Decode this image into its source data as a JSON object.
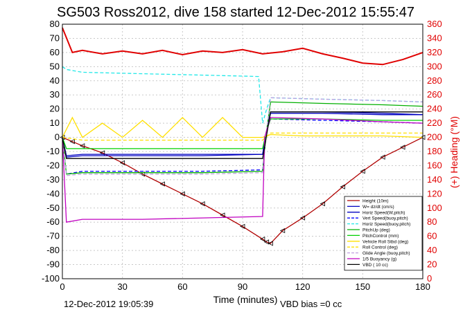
{
  "title": "SG503 Ross2012, dive 158 started 12-Dec-2012 15:55:47",
  "footer_left": "12-Dec-2012 19:05:39",
  "footer_right": "VBD bias =0 cc",
  "colors": {
    "heading": "#e00000",
    "height": "#b00000",
    "w": "#0000c0",
    "horz_speed": "#0000c0",
    "vert_speed": "#0000ff",
    "horz_speed_buoy": "#20e8e8",
    "pitch_up": "#00b000",
    "pitch_control": "#00d000",
    "vehicle_roll": "#ffe000",
    "roll_control": "#ffe000",
    "glide_angle": "#c0a0e0",
    "buoyancy": "#c000c0",
    "vbd": "#000000"
  },
  "chart_data": {
    "type": "line",
    "title": "SG503 Ross2012, dive 158 started 12-Dec-2012 15:55:47",
    "xlabel": "Time (minutes)",
    "ylabel": "",
    "y2label": "(+) Heading (°M)",
    "xlim": [
      0,
      180
    ],
    "ylim": [
      -100,
      80
    ],
    "y2lim": [
      0,
      360
    ],
    "x_ticks": [
      "0",
      "30",
      "60",
      "90",
      "120",
      "150",
      "180"
    ],
    "y_ticks": [
      "80",
      "70",
      "60",
      "50",
      "40",
      "30",
      "20",
      "10",
      "0",
      "-10",
      "-20",
      "-30",
      "-40",
      "-50",
      "-60",
      "-70",
      "-80",
      "-90",
      "-100"
    ],
    "y2_ticks": [
      "360",
      "340",
      "320",
      "300",
      "280",
      "260",
      "240",
      "220",
      "200",
      "180",
      "160",
      "140",
      "120",
      "100",
      "80",
      "60",
      "40",
      "20",
      "0"
    ],
    "grid": true,
    "legend_position": "bottom-right",
    "series": [
      {
        "name": "Height (10m)",
        "key": "height",
        "axis": "left",
        "style": "solid",
        "markers": true,
        "x": [
          0,
          5,
          10,
          20,
          30,
          40,
          50,
          60,
          70,
          80,
          90,
          100,
          102,
          104,
          110,
          120,
          130,
          140,
          150,
          160,
          170,
          180
        ],
        "y": [
          0,
          -3,
          -6,
          -11,
          -18,
          -26,
          -33,
          -40,
          -47,
          -55,
          -63,
          -72,
          -74,
          -75,
          -66,
          -57,
          -47,
          -35,
          -24,
          -14,
          -7,
          0
        ]
      },
      {
        "name": "W= dz/dt (cm/s)",
        "key": "w",
        "axis": "left",
        "style": "solid",
        "x": [
          0,
          2,
          10,
          40,
          70,
          100,
          102,
          104,
          130,
          160,
          180
        ],
        "y": [
          0,
          -14,
          -13,
          -13,
          -13,
          -12,
          5,
          17,
          17,
          16,
          16
        ]
      },
      {
        "name": "Horiz Speed(W,pitch)",
        "key": "horz_speed",
        "axis": "left",
        "style": "solid",
        "x": [
          0,
          2,
          10,
          40,
          70,
          100,
          102,
          104,
          130,
          160,
          180
        ],
        "y": [
          0,
          -13,
          -12,
          -12,
          -12,
          -12,
          5,
          18,
          18,
          17,
          16
        ]
      },
      {
        "name": "Vert Speed(buoy,pitch)",
        "key": "vert_speed",
        "axis": "left",
        "style": "dashed",
        "x": [
          0,
          2,
          10,
          40,
          70,
          100,
          102,
          104,
          130,
          160,
          180
        ],
        "y": [
          0,
          -26,
          -24,
          -24,
          -24,
          -23,
          5,
          13,
          12,
          11,
          10
        ]
      },
      {
        "name": "Horiz Speed(buoy,pitch)",
        "key": "horz_speed_buoy",
        "axis": "left",
        "style": "dashed",
        "x": [
          0,
          2,
          10,
          40,
          70,
          98,
          100,
          102,
          104,
          130,
          160,
          180
        ],
        "y": [
          50,
          48,
          46,
          45,
          44,
          43,
          10,
          20,
          28,
          27,
          26,
          25
        ]
      },
      {
        "name": "PitchUp (deg)",
        "key": "pitch_up",
        "axis": "left",
        "style": "solid",
        "x": [
          0,
          2,
          10,
          40,
          70,
          100,
          102,
          104,
          130,
          160,
          180
        ],
        "y": [
          0,
          -26,
          -25,
          -25,
          -25,
          -24,
          5,
          25,
          24,
          23,
          22
        ]
      },
      {
        "name": "PitchControl (mm)",
        "key": "pitch_control",
        "axis": "left",
        "style": "solid",
        "x": [
          0,
          2,
          10,
          40,
          70,
          100,
          102,
          104,
          130,
          160,
          180
        ],
        "y": [
          0,
          -8,
          -8,
          -8,
          -8,
          -8,
          5,
          13,
          13,
          12,
          12
        ]
      },
      {
        "name": "Vehicle Roll Stbd (deg)",
        "key": "vehicle_roll",
        "axis": "left",
        "style": "solid",
        "x": [
          0,
          5,
          10,
          20,
          30,
          40,
          50,
          60,
          70,
          80,
          90,
          100,
          104,
          120,
          140,
          160,
          180
        ],
        "y": [
          0,
          14,
          0,
          10,
          0,
          12,
          0,
          14,
          0,
          14,
          0,
          0,
          2,
          1,
          1,
          1,
          0
        ]
      },
      {
        "name": "Roll Control (deg)",
        "key": "roll_control",
        "axis": "left",
        "style": "dashed",
        "x": [
          0,
          10,
          40,
          70,
          100,
          104,
          140,
          180
        ],
        "y": [
          0,
          -2,
          -2,
          -2,
          -2,
          3,
          3,
          3
        ]
      },
      {
        "name": "Glide Angle (buoy,pitch)",
        "key": "glide_angle",
        "axis": "left",
        "style": "dashed",
        "x": [
          0,
          2,
          10,
          40,
          70,
          100,
          102,
          104,
          130,
          160,
          180
        ],
        "y": [
          0,
          -27,
          -26,
          -26,
          -26,
          -25,
          5,
          28,
          27,
          26,
          25
        ]
      },
      {
        "name": "1/5 Buoyancy (g)",
        "key": "buoyancy",
        "axis": "left",
        "style": "solid",
        "x": [
          0,
          2,
          10,
          40,
          70,
          100,
          101,
          104,
          130,
          160,
          180
        ],
        "y": [
          0,
          -60,
          -58,
          -58,
          -57,
          -56,
          0,
          14,
          13,
          11,
          10
        ]
      },
      {
        "name": "VBD ( 10 cc)",
        "key": "vbd",
        "axis": "left",
        "style": "solid",
        "x": [
          0,
          2,
          100,
          104,
          180
        ],
        "y": [
          0,
          -15,
          -15,
          18,
          18
        ]
      },
      {
        "name": "Heading",
        "key": "heading",
        "axis": "right",
        "style": "solid",
        "x": [
          0,
          5,
          10,
          20,
          30,
          40,
          50,
          60,
          70,
          80,
          90,
          100,
          110,
          120,
          130,
          140,
          150,
          160,
          170,
          180
        ],
        "y": [
          355,
          320,
          323,
          318,
          322,
          318,
          323,
          317,
          322,
          320,
          324,
          318,
          321,
          326,
          318,
          312,
          305,
          303,
          310,
          320
        ]
      }
    ]
  }
}
